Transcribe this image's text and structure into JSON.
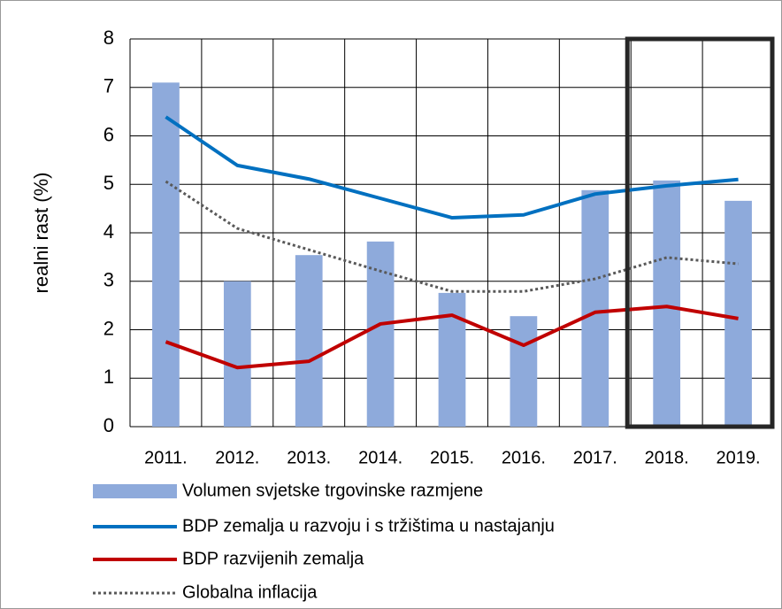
{
  "chart_data": {
    "type": "bar",
    "y_label": "realni rast (%)",
    "categories": [
      "2011.",
      "2012.",
      "2013.",
      "2014.",
      "2015.",
      "2016.",
      "2017.",
      "2018.",
      "2019."
    ],
    "series": [
      {
        "name": "Volumen svjetske trgovinske razmjene",
        "type": "bar",
        "color": "#8eaadb",
        "values": [
          7.1,
          3.0,
          3.54,
          3.82,
          2.76,
          2.28,
          4.88,
          5.08,
          4.66
        ]
      },
      {
        "name": "BDP zemalja u razvoju i s tržištima u nastajanju",
        "type": "line",
        "color": "#0070c0",
        "values": [
          6.39,
          5.39,
          5.11,
          4.71,
          4.31,
          4.37,
          4.8,
          4.97,
          5.1
        ]
      },
      {
        "name": "BDP razvijenih zemalja",
        "type": "line",
        "color": "#c00000",
        "values": [
          1.75,
          1.22,
          1.35,
          2.12,
          2.3,
          1.68,
          2.36,
          2.48,
          2.23
        ]
      },
      {
        "name": "Globalna inflacija",
        "type": "line",
        "dashed": true,
        "color": "#595959",
        "values": [
          5.06,
          4.09,
          3.65,
          3.21,
          2.79,
          2.79,
          3.05,
          3.49,
          3.36
        ]
      }
    ],
    "ylim": [
      0,
      8
    ],
    "yticks": [
      0,
      1,
      2,
      3,
      4,
      5,
      6,
      7,
      8
    ],
    "grid": true,
    "legend": "bottom"
  }
}
